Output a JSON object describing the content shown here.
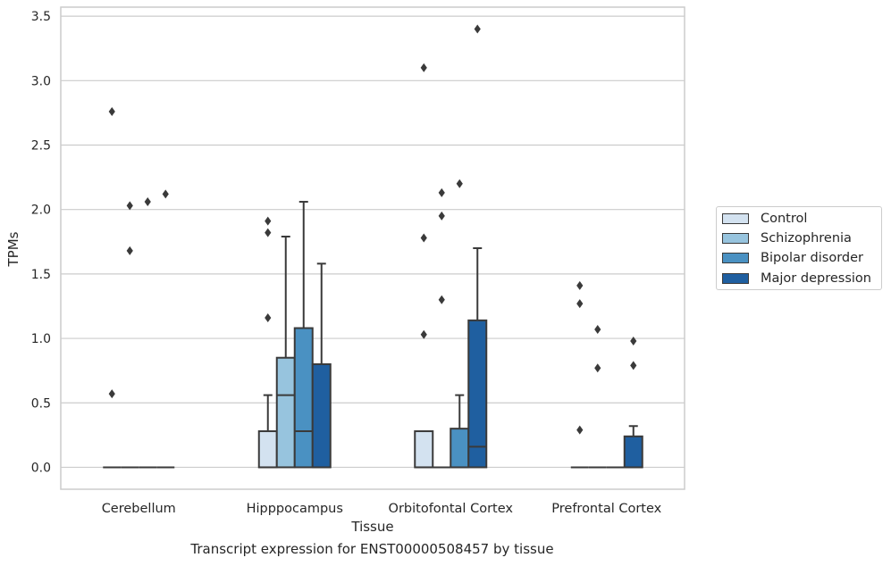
{
  "chart_data": {
    "type": "box",
    "xlabel": "Tissue",
    "ylabel": "TPMs",
    "ylim": [
      -0.17,
      3.57
    ],
    "yticks": [
      0.0,
      0.5,
      1.0,
      1.5,
      2.0,
      2.5,
      3.0,
      3.5
    ],
    "ytick_labels": [
      "0.0",
      "0.5",
      "1.0",
      "1.5",
      "2.0",
      "2.5",
      "3.0",
      "3.5"
    ],
    "categories": [
      "Cerebellum",
      "Hipppocampus",
      "Orbitofontal Cortex",
      "Prefrontal Cortex"
    ],
    "grid": "horizontal",
    "legend_position": "right",
    "series": [
      {
        "name": "Control",
        "color": "#d3e2f0",
        "boxes": [
          {
            "q1": 0,
            "median": 0,
            "q3": 0,
            "whisker_low": 0,
            "whisker_high": 0,
            "outliers": [
              0.57,
              2.76
            ]
          },
          {
            "q1": 0,
            "median": 0,
            "q3": 0.28,
            "whisker_low": 0,
            "whisker_high": 0.56,
            "outliers": [
              1.16,
              1.82,
              1.91
            ]
          },
          {
            "q1": 0,
            "median": 0,
            "q3": 0.28,
            "whisker_low": 0,
            "whisker_high": 0.28,
            "outliers": [
              1.03,
              1.78,
              3.1
            ]
          },
          {
            "q1": 0,
            "median": 0,
            "q3": 0,
            "whisker_low": 0,
            "whisker_high": 0,
            "outliers": [
              0.29,
              1.27,
              1.41
            ]
          }
        ]
      },
      {
        "name": "Schizophrenia",
        "color": "#97c4de",
        "boxes": [
          {
            "q1": 0,
            "median": 0,
            "q3": 0,
            "whisker_low": 0,
            "whisker_high": 0,
            "outliers": [
              1.68,
              2.03
            ]
          },
          {
            "q1": 0,
            "median": 0.56,
            "q3": 0.85,
            "whisker_low": 0,
            "whisker_high": 1.79,
            "outliers": []
          },
          {
            "q1": 0,
            "median": 0,
            "q3": 0,
            "whisker_low": 0,
            "whisker_high": 0,
            "outliers": [
              1.3,
              1.95,
              2.13
            ]
          },
          {
            "q1": 0,
            "median": 0,
            "q3": 0,
            "whisker_low": 0,
            "whisker_high": 0,
            "outliers": [
              0.77,
              1.07
            ]
          }
        ]
      },
      {
        "name": "Bipolar disorder",
        "color": "#4a91c2",
        "boxes": [
          {
            "q1": 0,
            "median": 0,
            "q3": 0,
            "whisker_low": 0,
            "whisker_high": 0,
            "outliers": [
              2.06
            ]
          },
          {
            "q1": 0,
            "median": 0.28,
            "q3": 1.08,
            "whisker_low": 0,
            "whisker_high": 2.06,
            "outliers": []
          },
          {
            "q1": 0,
            "median": 0,
            "q3": 0.3,
            "whisker_low": 0,
            "whisker_high": 0.56,
            "outliers": [
              2.2
            ]
          },
          {
            "q1": 0,
            "median": 0,
            "q3": 0,
            "whisker_low": 0,
            "whisker_high": 0,
            "outliers": []
          }
        ]
      },
      {
        "name": "Major depression",
        "color": "#1f5fa0",
        "boxes": [
          {
            "q1": 0,
            "median": 0,
            "q3": 0,
            "whisker_low": 0,
            "whisker_high": 0,
            "outliers": [
              2.12
            ]
          },
          {
            "q1": 0,
            "median": 0,
            "q3": 0.8,
            "whisker_low": 0,
            "whisker_high": 1.58,
            "outliers": []
          },
          {
            "q1": 0,
            "median": 0.16,
            "q3": 1.14,
            "whisker_low": 0,
            "whisker_high": 1.7,
            "outliers": [
              3.4
            ]
          },
          {
            "q1": 0,
            "median": 0,
            "q3": 0.24,
            "whisker_low": 0,
            "whisker_high": 0.32,
            "outliers": [
              0.79,
              0.98
            ]
          }
        ]
      }
    ]
  },
  "caption": "Transcript expression for ENST00000508457 by tissue",
  "colors": {
    "grid": "#cccccc",
    "axes_edge": "#cccccc",
    "line": "#3a3a3a",
    "outlier": "#3a3a3a",
    "background": "#ffffff"
  }
}
